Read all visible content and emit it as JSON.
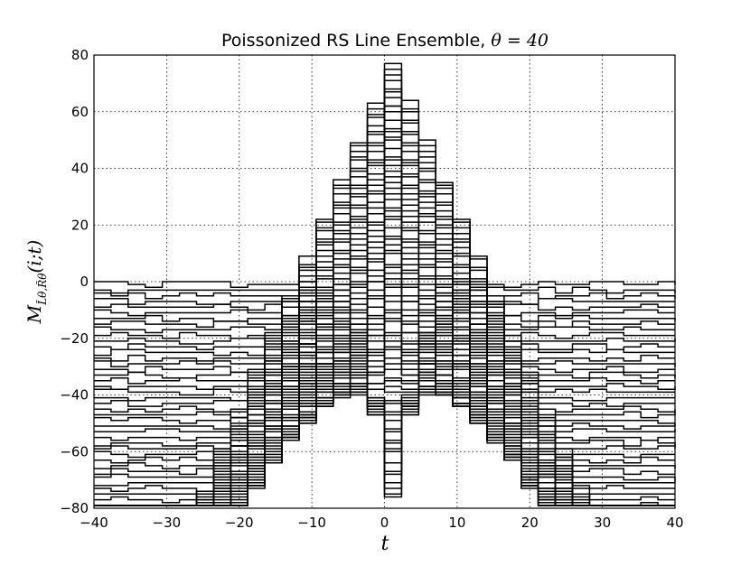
{
  "chart_data": {
    "type": "line",
    "title": "Poissonized RS Line Ensemble, ",
    "title_math_symbol": "θ",
    "title_math_eq": " = ",
    "title_math_value": "40",
    "xlabel": "t",
    "ylabel": "M_{L̃θ,R̃θ}(i;t)",
    "ylabel_parts": {
      "base": "M",
      "sub": "L̃θ,R̃θ",
      "args": "(i;t)"
    },
    "xlim": [
      -40,
      40
    ],
    "ylim": [
      -80,
      80
    ],
    "x_ticks": [
      "−40",
      "−30",
      "−20",
      "−10",
      "0",
      "10",
      "20",
      "30",
      "40"
    ],
    "y_ticks": [
      "80",
      "60",
      "40",
      "20",
      "0",
      "−20",
      "−40",
      "−60",
      "−80"
    ],
    "grid": true,
    "line_color": "#000000",
    "description_note": "staircase lines approximating the RS line ensemble; series i = 1..78",
    "series_params": {
      "theta": 40,
      "count": 78,
      "top_level": 77,
      "bottom_level": -77,
      "level_spacing": 2,
      "x_range": [
        -40,
        40
      ],
      "step_count": 34
    }
  }
}
